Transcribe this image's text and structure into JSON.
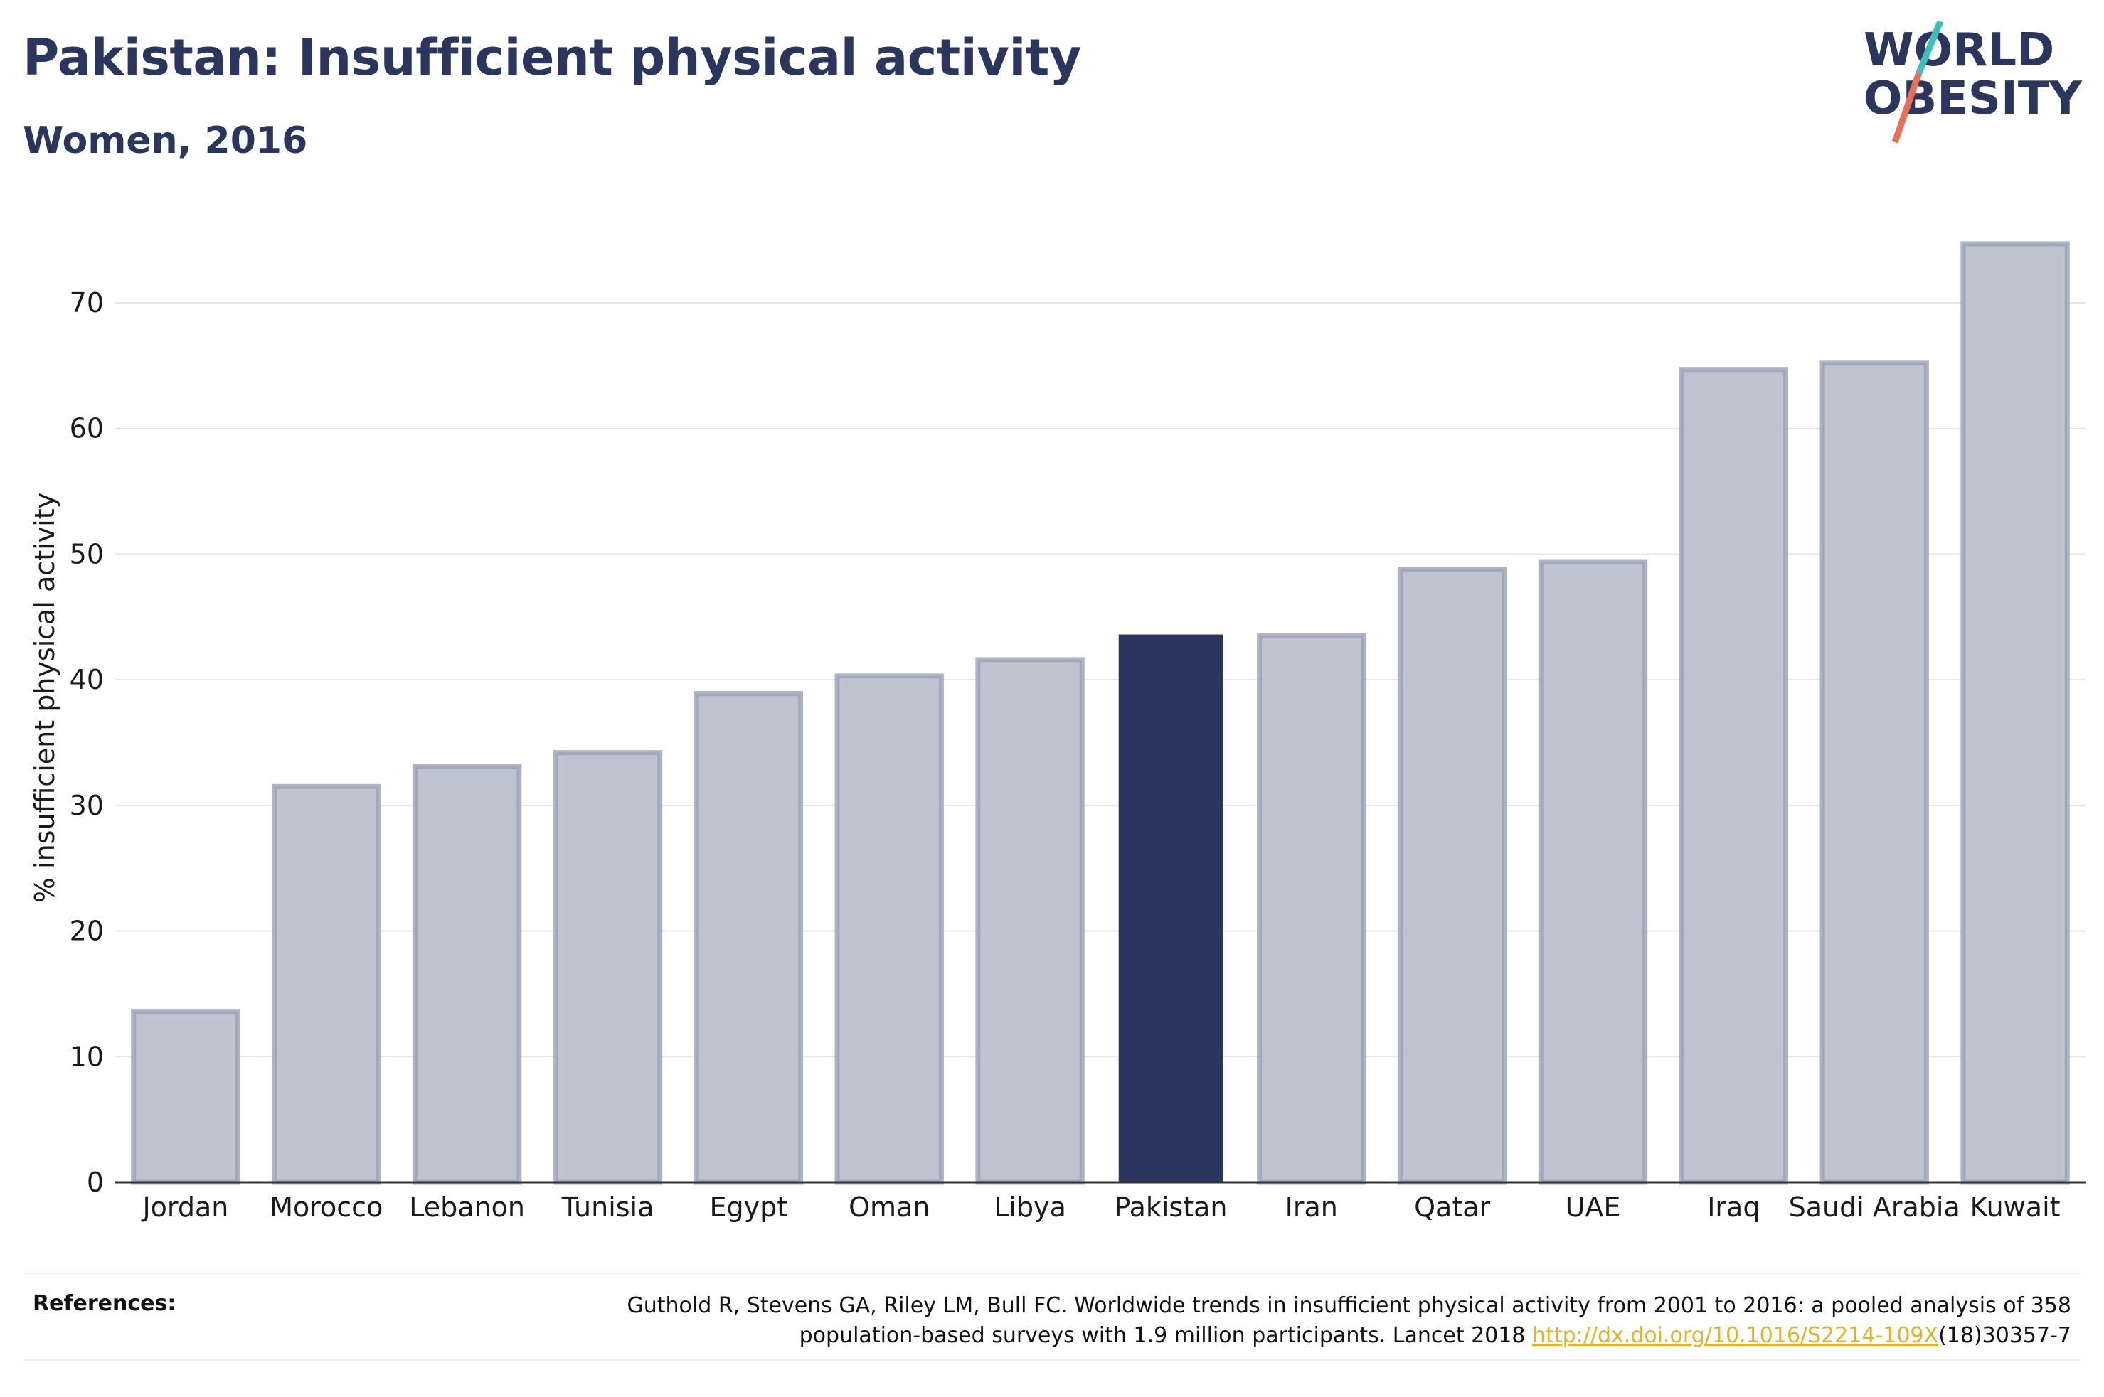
{
  "header": {
    "title": "Pakistan: Insufficient physical activity",
    "subtitle": "Women, 2016"
  },
  "logo": {
    "line1": "WORLD",
    "line2": "OBESITY",
    "slash_colors": [
      "#3cbfbd",
      "#e8705a"
    ]
  },
  "colors": {
    "highlight": "#2b365f",
    "bar": "#bfc3cf",
    "bar_border": "#9aa1b7",
    "link": "#e6b325"
  },
  "chart_data": {
    "type": "bar",
    "title": "Pakistan: Insufficient physical activity",
    "subtitle": "Women, 2016",
    "xlabel": "",
    "ylabel": "% insufficient physical activity",
    "ylim": [
      0,
      76
    ],
    "yticks": [
      0,
      10,
      20,
      30,
      40,
      50,
      60,
      70
    ],
    "grid": true,
    "legend": "none",
    "highlight_category": "Pakistan",
    "categories": [
      "Jordan",
      "Morocco",
      "Lebanon",
      "Tunisia",
      "Egypt",
      "Oman",
      "Libya",
      "Pakistan",
      "Iran",
      "Qatar",
      "UAE",
      "Iraq",
      "Saudi Arabia",
      "Kuwait"
    ],
    "values": [
      13.6,
      31.5,
      33.1,
      34.2,
      38.9,
      40.3,
      41.6,
      43.6,
      43.5,
      48.8,
      49.4,
      64.7,
      65.2,
      74.7
    ]
  },
  "references": {
    "label": "References:",
    "line1": "Guthold R, Stevens GA, Riley LM, Bull FC. Worldwide trends in insufficient physical activity from 2001 to 2016: a pooled analysis of 358",
    "line2_prefix": "population-based surveys with 1.9 million participants. Lancet 2018 ",
    "link": "http://dx.doi.org/10.1016/S2214-109X",
    "line2_suffix": "(18)30357-7"
  }
}
